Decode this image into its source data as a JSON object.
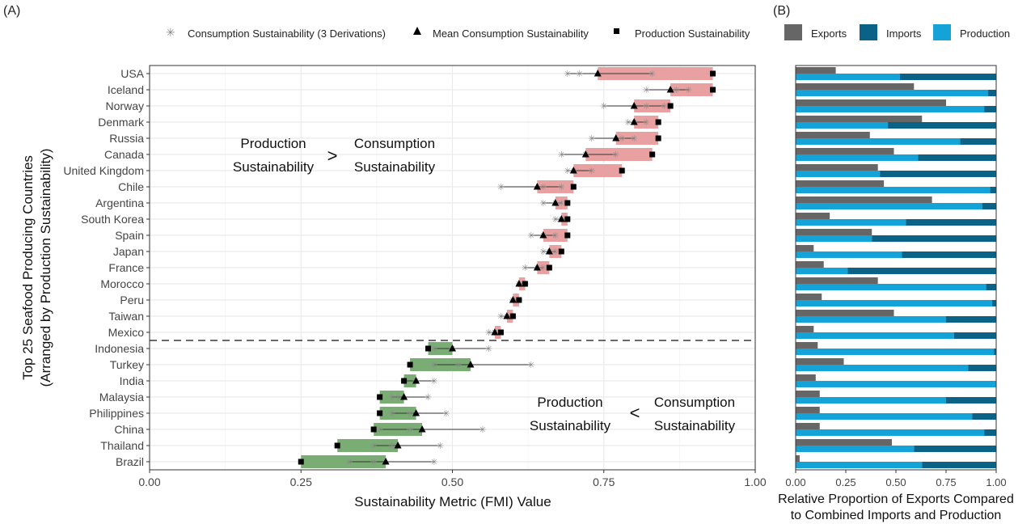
{
  "panel_labels": {
    "a": "(A)",
    "b": "(B)"
  },
  "legend_a": {
    "consumption": "Consumption Sustainability (3 Derivations)",
    "mean": "Mean Consumption Sustainability",
    "production": "Production Sustainability"
  },
  "legend_b": {
    "exports": "Exports",
    "imports": "Imports",
    "production": "Production"
  },
  "annotations": {
    "upper": {
      "left_1": "Production",
      "left_2": "Sustainability",
      "sign": ">",
      "right_1": "Consumption",
      "right_2": "Sustainability"
    },
    "lower": {
      "left_1": "Production",
      "left_2": "Sustainability",
      "sign": "<",
      "right_1": "Consumption",
      "right_2": "Sustainability"
    }
  },
  "colors": {
    "prod_greater": "#e8a0a0",
    "cons_greater": "#7aad74",
    "exports": "#666666",
    "imports": "#0b6287",
    "production": "#14a3d9",
    "grid": "#ebebeb"
  },
  "chart_data": [
    {
      "type": "scatter",
      "title": "",
      "xlabel": "Sustainability Metric (FMI) Value",
      "ylabel_1": "Top 25 Seafood Producing Countries",
      "ylabel_2": "(Arranged by Production Sustainability)",
      "xlim": [
        0,
        1
      ],
      "x_ticks": [
        "0.00",
        "0.25",
        "0.50",
        "0.75",
        "1.00"
      ],
      "divider_after": "Mexico",
      "countries": [
        {
          "name": "USA",
          "production": 0.93,
          "mean": 0.74,
          "derivations": [
            0.69,
            0.71,
            0.83
          ]
        },
        {
          "name": "Iceland",
          "production": 0.93,
          "mean": 0.86,
          "derivations": [
            0.82,
            0.87,
            0.89
          ]
        },
        {
          "name": "Norway",
          "production": 0.86,
          "mean": 0.8,
          "derivations": [
            0.75,
            0.82,
            0.85
          ]
        },
        {
          "name": "Denmark",
          "production": 0.84,
          "mean": 0.8,
          "derivations": [
            0.79,
            0.8,
            0.82
          ]
        },
        {
          "name": "Russia",
          "production": 0.84,
          "mean": 0.77,
          "derivations": [
            0.73,
            0.78,
            0.8
          ]
        },
        {
          "name": "Canada",
          "production": 0.83,
          "mean": 0.72,
          "derivations": [
            0.68,
            0.72,
            0.77
          ]
        },
        {
          "name": "United Kingdom",
          "production": 0.78,
          "mean": 0.7,
          "derivations": [
            0.69,
            0.7,
            0.73
          ]
        },
        {
          "name": "Chile",
          "production": 0.7,
          "mean": 0.64,
          "derivations": [
            0.58,
            0.65,
            0.68
          ]
        },
        {
          "name": "Argentina",
          "production": 0.69,
          "mean": 0.67,
          "derivations": [
            0.65,
            0.67,
            0.68
          ]
        },
        {
          "name": "South Korea",
          "production": 0.69,
          "mean": 0.68,
          "derivations": [
            0.67,
            0.68,
            0.69
          ]
        },
        {
          "name": "Spain",
          "production": 0.69,
          "mean": 0.65,
          "derivations": [
            0.63,
            0.65,
            0.67
          ]
        },
        {
          "name": "Japan",
          "production": 0.68,
          "mean": 0.66,
          "derivations": [
            0.65,
            0.66,
            0.67
          ]
        },
        {
          "name": "France",
          "production": 0.66,
          "mean": 0.64,
          "derivations": [
            0.62,
            0.64,
            0.65
          ]
        },
        {
          "name": "Morocco",
          "production": 0.62,
          "mean": 0.61,
          "derivations": [
            0.61,
            0.62,
            0.62
          ]
        },
        {
          "name": "Peru",
          "production": 0.61,
          "mean": 0.6,
          "derivations": [
            0.6,
            0.6,
            0.61
          ]
        },
        {
          "name": "Taiwan",
          "production": 0.6,
          "mean": 0.59,
          "derivations": [
            0.58,
            0.59,
            0.6
          ]
        },
        {
          "name": "Mexico",
          "production": 0.58,
          "mean": 0.57,
          "derivations": [
            0.56,
            0.57,
            0.57
          ]
        },
        {
          "name": "Indonesia",
          "production": 0.46,
          "mean": 0.5,
          "derivations": [
            0.47,
            0.5,
            0.56
          ]
        },
        {
          "name": "Turkey",
          "production": 0.43,
          "mean": 0.53,
          "derivations": [
            0.47,
            0.51,
            0.63
          ]
        },
        {
          "name": "India",
          "production": 0.42,
          "mean": 0.44,
          "derivations": [
            0.42,
            0.44,
            0.47
          ]
        },
        {
          "name": "Malaysia",
          "production": 0.38,
          "mean": 0.42,
          "derivations": [
            0.4,
            0.41,
            0.46
          ]
        },
        {
          "name": "Philippines",
          "production": 0.38,
          "mean": 0.44,
          "derivations": [
            0.4,
            0.43,
            0.49
          ]
        },
        {
          "name": "China",
          "production": 0.37,
          "mean": 0.45,
          "derivations": [
            0.38,
            0.43,
            0.55
          ]
        },
        {
          "name": "Thailand",
          "production": 0.31,
          "mean": 0.41,
          "derivations": [
            0.37,
            0.4,
            0.48
          ]
        },
        {
          "name": "Brazil",
          "production": 0.25,
          "mean": 0.39,
          "derivations": [
            0.33,
            0.37,
            0.47
          ]
        }
      ]
    },
    {
      "type": "bar",
      "title": "",
      "xlabel_1": "Relative Proportion of Exports Compared",
      "xlabel_2": "to Combined Imports and Production",
      "xlim": [
        0,
        1
      ],
      "x_ticks": [
        "0.00",
        "0.25",
        "0.50",
        "0.75",
        "1.00"
      ],
      "rows": [
        {
          "name": "USA",
          "exports": 0.2,
          "production_share": 0.52
        },
        {
          "name": "Iceland",
          "exports": 0.59,
          "production_share": 0.96
        },
        {
          "name": "Norway",
          "exports": 0.75,
          "production_share": 0.94
        },
        {
          "name": "Denmark",
          "exports": 0.63,
          "production_share": 0.46
        },
        {
          "name": "Russia",
          "exports": 0.37,
          "production_share": 0.82
        },
        {
          "name": "Canada",
          "exports": 0.49,
          "production_share": 0.61
        },
        {
          "name": "United Kingdom",
          "exports": 0.41,
          "production_share": 0.42
        },
        {
          "name": "Chile",
          "exports": 0.44,
          "production_share": 0.97
        },
        {
          "name": "Argentina",
          "exports": 0.68,
          "production_share": 0.93
        },
        {
          "name": "South Korea",
          "exports": 0.17,
          "production_share": 0.55
        },
        {
          "name": "Spain",
          "exports": 0.38,
          "production_share": 0.38
        },
        {
          "name": "Japan",
          "exports": 0.09,
          "production_share": 0.53
        },
        {
          "name": "France",
          "exports": 0.14,
          "production_share": 0.26
        },
        {
          "name": "Morocco",
          "exports": 0.41,
          "production_share": 0.95
        },
        {
          "name": "Peru",
          "exports": 0.13,
          "production_share": 0.98
        },
        {
          "name": "Taiwan",
          "exports": 0.49,
          "production_share": 0.75
        },
        {
          "name": "Mexico",
          "exports": 0.09,
          "production_share": 0.79
        },
        {
          "name": "Indonesia",
          "exports": 0.11,
          "production_share": 0.99
        },
        {
          "name": "Turkey",
          "exports": 0.24,
          "production_share": 0.86
        },
        {
          "name": "India",
          "exports": 0.1,
          "production_share": 1.0
        },
        {
          "name": "Malaysia",
          "exports": 0.12,
          "production_share": 0.75
        },
        {
          "name": "Philippines",
          "exports": 0.12,
          "production_share": 0.88
        },
        {
          "name": "China",
          "exports": 0.12,
          "production_share": 0.94
        },
        {
          "name": "Thailand",
          "exports": 0.48,
          "production_share": 0.59
        },
        {
          "name": "Brazil",
          "exports": 0.02,
          "production_share": 0.63
        }
      ]
    }
  ]
}
